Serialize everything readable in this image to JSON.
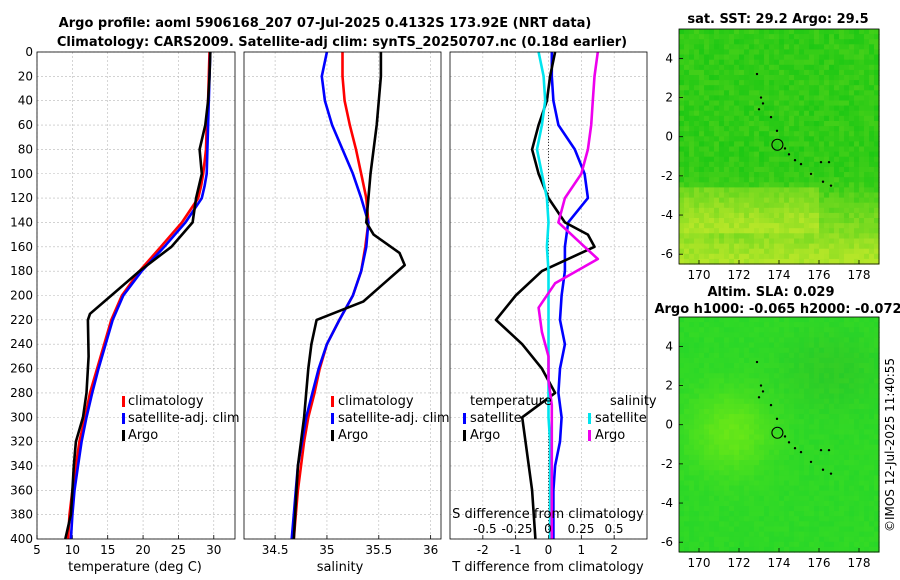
{
  "figure": {
    "title_line1": "Argo profile: aoml 5906168_207 07-Jul-2025 0.4132S 173.92E (NRT data)",
    "title_line2": "Climatology: CARS2009. Satellite-adj clim: synTS_20250707.nc (0.18d earlier)",
    "copyright": "©IMOS 12-Jul-2025 11:40:55"
  },
  "colors": {
    "climatology": "#ff0000",
    "satellite": "#0000ff",
    "argo": "#000000",
    "salinity_sat": "#00e5ee",
    "salinity_argo": "#ee00ee",
    "map_bg": "#22dd22"
  },
  "chart_data": [
    {
      "id": "temp",
      "type": "line",
      "xlabel": "temperature (deg C)",
      "xlim": [
        5,
        33
      ],
      "xticks": [
        5,
        10,
        15,
        20,
        25,
        30
      ],
      "ylim": [
        0,
        400
      ],
      "yticks": [
        0,
        20,
        40,
        60,
        80,
        100,
        120,
        140,
        160,
        180,
        200,
        220,
        240,
        260,
        280,
        300,
        320,
        340,
        360,
        380,
        400
      ],
      "legend": [
        "climatology",
        "satellite-adj. clim",
        "Argo"
      ],
      "series": [
        {
          "name": "climatology",
          "color": "#ff0000",
          "x": [
            29.4,
            29.3,
            29.2,
            29.0,
            28.9,
            28.5,
            28.2,
            27.8,
            25.5,
            22.5,
            19.5,
            17.0,
            15.5,
            14.5,
            13.5,
            12.5,
            11.8,
            11.0,
            10.5,
            10.0,
            9.6,
            9.4
          ],
          "y": [
            0,
            20,
            40,
            60,
            80,
            100,
            110,
            120,
            140,
            160,
            180,
            200,
            220,
            240,
            260,
            280,
            300,
            320,
            340,
            360,
            380,
            400
          ]
        },
        {
          "name": "satellite-adj. clim",
          "color": "#0000ff",
          "x": [
            29.5,
            29.4,
            29.3,
            29.2,
            29.1,
            29.0,
            28.7,
            28.3,
            26.0,
            23.0,
            19.8,
            17.2,
            15.7,
            14.7,
            13.7,
            12.8,
            12.0,
            11.3,
            10.8,
            10.3,
            10.0,
            9.8
          ],
          "y": [
            0,
            20,
            40,
            60,
            80,
            100,
            110,
            120,
            140,
            160,
            180,
            200,
            220,
            240,
            260,
            280,
            300,
            320,
            340,
            360,
            380,
            400
          ]
        },
        {
          "name": "Argo",
          "color": "#000000",
          "x": [
            29.5,
            29.4,
            29.2,
            28.8,
            28.0,
            28.3,
            27.5,
            27.0,
            25.5,
            24.0,
            19.5,
            15.5,
            12.5,
            12.2,
            12.3,
            12.0,
            11.5,
            10.5,
            10.2,
            10.0,
            9.8,
            9.2,
            9.0
          ],
          "y": [
            0,
            20,
            40,
            60,
            80,
            100,
            120,
            140,
            150,
            160,
            180,
            200,
            215,
            220,
            250,
            280,
            300,
            320,
            340,
            360,
            380,
            395,
            400
          ]
        }
      ]
    },
    {
      "id": "sal",
      "type": "line",
      "xlabel": "salinity",
      "xlim": [
        34.2,
        36.1
      ],
      "xticks": [
        34.5,
        35,
        35.5,
        36
      ],
      "ylim": [
        0,
        400
      ],
      "legend": [
        "climatology",
        "satellite-adj. clim",
        "Argo"
      ],
      "series": [
        {
          "name": "climatology",
          "color": "#ff0000",
          "x": [
            35.15,
            35.15,
            35.17,
            35.22,
            35.28,
            35.33,
            35.38,
            35.4,
            35.37,
            35.33,
            35.25,
            35.12,
            35.0,
            34.93,
            34.88,
            34.82,
            34.78,
            34.75,
            34.72,
            34.7,
            34.68
          ],
          "y": [
            0,
            20,
            40,
            60,
            80,
            100,
            120,
            140,
            160,
            180,
            200,
            220,
            240,
            260,
            280,
            300,
            320,
            340,
            360,
            380,
            400
          ]
        },
        {
          "name": "satellite-adj. clim",
          "color": "#0000ff",
          "x": [
            35.0,
            34.95,
            34.98,
            35.05,
            35.15,
            35.25,
            35.33,
            35.4,
            35.38,
            35.33,
            35.25,
            35.12,
            35.0,
            34.92,
            34.86,
            34.8,
            34.76,
            34.72,
            34.7,
            34.68,
            34.66
          ],
          "y": [
            0,
            20,
            40,
            60,
            80,
            100,
            120,
            140,
            160,
            180,
            200,
            220,
            240,
            260,
            280,
            300,
            320,
            340,
            360,
            380,
            400
          ]
        },
        {
          "name": "Argo",
          "color": "#000000",
          "x": [
            35.52,
            35.52,
            35.5,
            35.48,
            35.45,
            35.42,
            35.4,
            35.38,
            35.45,
            35.7,
            35.75,
            35.55,
            35.35,
            34.9,
            34.85,
            34.82,
            34.8,
            34.78,
            34.75,
            34.72,
            34.7,
            34.68
          ],
          "y": [
            0,
            20,
            40,
            60,
            80,
            100,
            120,
            140,
            150,
            165,
            175,
            190,
            205,
            220,
            240,
            260,
            280,
            300,
            320,
            340,
            370,
            400
          ]
        }
      ]
    },
    {
      "id": "diff",
      "type": "line",
      "xlabel": "T difference from climatology",
      "xlim": [
        -3,
        3
      ],
      "xticks": [
        -2,
        -1,
        0,
        1,
        2
      ],
      "secondary_xlabel": "S difference from climatology",
      "secondary_xticks": [
        "-0.5",
        "-0.25",
        "0",
        "0.25",
        "0.5"
      ],
      "ylim": [
        0,
        400
      ],
      "legend_temperature": "temperature",
      "legend_salinity": "salinity",
      "legend_items": [
        "satellite",
        "Argo"
      ],
      "series": [
        {
          "name": "temperature satellite",
          "color": "#0000ff",
          "x": [
            0.1,
            0.1,
            0.15,
            0.3,
            0.8,
            1.1,
            1.2,
            0.6,
            0.5,
            0.5,
            0.4,
            0.35,
            0.5,
            0.35,
            0.3,
            0.4,
            0.35,
            0.2,
            0.15,
            0.15,
            0.15
          ],
          "y": [
            0,
            20,
            40,
            60,
            80,
            100,
            120,
            140,
            160,
            180,
            200,
            220,
            240,
            260,
            280,
            300,
            320,
            340,
            360,
            380,
            400
          ]
        },
        {
          "name": "temperature Argo",
          "color": "#000000",
          "x": [
            0.2,
            0.05,
            -0.05,
            -0.3,
            -0.5,
            -0.3,
            0.0,
            0.5,
            1.2,
            1.4,
            -0.2,
            -1.0,
            -1.6,
            -0.8,
            -0.2,
            0.2,
            -0.8,
            -0.7,
            -0.6,
            -0.5,
            -0.4
          ],
          "y": [
            0,
            20,
            40,
            60,
            80,
            100,
            120,
            140,
            150,
            160,
            180,
            200,
            220,
            240,
            260,
            280,
            300,
            320,
            340,
            360,
            400
          ]
        },
        {
          "name": "salinity satellite",
          "color": "#00e5ee",
          "x": [
            -0.3,
            -0.15,
            -0.1,
            -0.2,
            -0.35,
            -0.2,
            -0.05,
            0.0,
            -0.05,
            0.0,
            0.0,
            0.0,
            0.0,
            0.0,
            0.0,
            0.0,
            0.05,
            0.05,
            0.05,
            0.05,
            0.05
          ],
          "y": [
            0,
            20,
            40,
            60,
            80,
            100,
            120,
            140,
            160,
            180,
            200,
            220,
            240,
            260,
            280,
            300,
            320,
            340,
            360,
            380,
            400
          ]
        },
        {
          "name": "salinity Argo",
          "color": "#ee00ee",
          "x": [
            1.5,
            1.4,
            1.35,
            1.3,
            1.2,
            1.0,
            0.5,
            0.3,
            1.1,
            1.5,
            0.2,
            -0.3,
            -0.2,
            0.0,
            0.0,
            0.1,
            0.1,
            0.1,
            0.1,
            0.1,
            0.1
          ],
          "y": [
            0,
            20,
            40,
            60,
            80,
            100,
            120,
            140,
            160,
            170,
            190,
            210,
            230,
            250,
            270,
            290,
            320,
            340,
            360,
            380,
            400
          ]
        }
      ]
    },
    {
      "id": "sst_map",
      "type": "heatmap",
      "title": "sat. SST: 29.2 Argo: 29.5",
      "xticks": [
        170,
        172,
        174,
        176,
        178
      ],
      "yticks": [
        4,
        2,
        0,
        -2,
        -4,
        -6
      ],
      "xlim": [
        169,
        179
      ],
      "ylim": [
        -6.5,
        5.5
      ],
      "argo_position": [
        173.92,
        -0.41
      ]
    },
    {
      "id": "sla_map",
      "type": "heatmap",
      "title_line1": "Altim. SLA: 0.029",
      "title_line2": "Argo h1000: -0.065 h2000: -0.072",
      "xticks": [
        170,
        172,
        174,
        176,
        178
      ],
      "yticks": [
        4,
        2,
        0,
        -2,
        -4,
        -6
      ],
      "xlim": [
        169,
        179
      ],
      "ylim": [
        -6.5,
        5.5
      ],
      "argo_position": [
        173.92,
        -0.41
      ]
    }
  ]
}
